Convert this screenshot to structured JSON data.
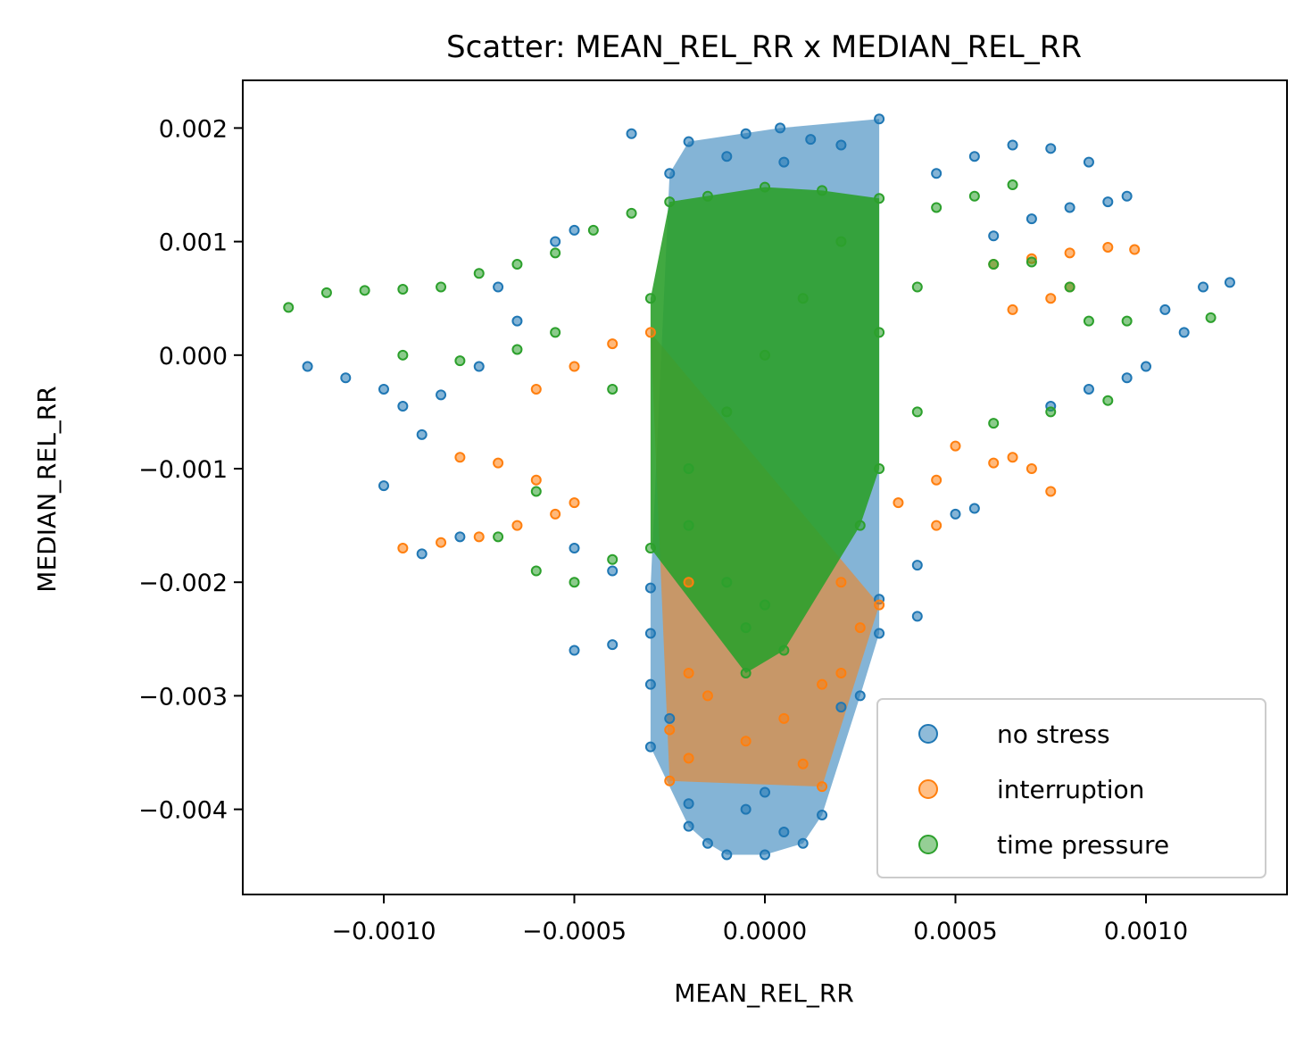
{
  "chart_data": {
    "type": "scatter",
    "title": "Scatter: MEAN_REL_RR x MEDIAN_REL_RR",
    "xlabel": "MEAN_REL_RR",
    "ylabel": "MEDIAN_REL_RR",
    "xlim": [
      -0.00137,
      0.00137
    ],
    "ylim": [
      -0.00475,
      0.00242
    ],
    "xticks": [
      -0.001,
      -0.0005,
      0.0,
      0.0005,
      0.001
    ],
    "xtick_labels": [
      "−0.0010",
      "−0.0005",
      "0.0000",
      "0.0005",
      "0.0010"
    ],
    "yticks": [
      0.002,
      0.001,
      0.0,
      -0.001,
      -0.002,
      -0.003,
      -0.004
    ],
    "ytick_labels": [
      "0.002",
      "0.001",
      "0.000",
      "−0.001",
      "−0.002",
      "−0.003",
      "−0.004"
    ],
    "grid": false,
    "legend_position": "lower-right",
    "series": [
      {
        "name": "no stress",
        "color": "#1f77b4",
        "points": [
          [
            -5e-05,
            0.00195
          ],
          [
            4e-05,
            0.002
          ],
          [
            0.00012,
            0.0019
          ],
          [
            0.0002,
            0.00185
          ],
          [
            0.0003,
            0.00208
          ],
          [
            -0.00035,
            0.00195
          ],
          [
            -0.0002,
            0.00188
          ],
          [
            -0.0001,
            0.00175
          ],
          [
            5e-05,
            0.0017
          ],
          [
            -0.00025,
            0.0016
          ],
          [
            0.00045,
            0.0016
          ],
          [
            0.00055,
            0.00175
          ],
          [
            0.00065,
            0.00185
          ],
          [
            0.00075,
            0.00182
          ],
          [
            0.00085,
            0.0017
          ],
          [
            0.0009,
            0.00135
          ],
          [
            0.0008,
            0.0013
          ],
          [
            0.0007,
            0.0012
          ],
          [
            0.0006,
            0.00105
          ],
          [
            0.00095,
            0.0014
          ],
          [
            0.00105,
            0.0004
          ],
          [
            0.00115,
            0.0006
          ],
          [
            0.00122,
            0.00064
          ],
          [
            0.0011,
            0.0002
          ],
          [
            0.001,
            -0.0001
          ],
          [
            0.00085,
            -0.0003
          ],
          [
            0.00075,
            -0.00045
          ],
          [
            0.00095,
            -0.0002
          ],
          [
            -0.0012,
            -0.0001
          ],
          [
            -0.0011,
            -0.0002
          ],
          [
            -0.001,
            -0.0003
          ],
          [
            -0.00095,
            -0.00045
          ],
          [
            -0.00085,
            -0.00035
          ],
          [
            -0.00075,
            -0.0001
          ],
          [
            -0.00065,
            0.0003
          ],
          [
            -0.0007,
            0.0006
          ],
          [
            -0.00055,
            0.001
          ],
          [
            -0.0005,
            0.0011
          ],
          [
            -0.0009,
            -0.0007
          ],
          [
            -0.001,
            -0.00115
          ],
          [
            -0.0008,
            -0.0016
          ],
          [
            -0.0009,
            -0.00175
          ],
          [
            -0.0005,
            -0.0017
          ],
          [
            -0.0004,
            -0.0019
          ],
          [
            -0.0003,
            -0.00205
          ],
          [
            0.0003,
            -0.00215
          ],
          [
            0.0004,
            -0.00185
          ],
          [
            0.0005,
            -0.0014
          ],
          [
            0.00055,
            -0.00135
          ],
          [
            0.0004,
            -0.0023
          ],
          [
            0.0003,
            -0.00245
          ],
          [
            -0.0005,
            -0.0026
          ],
          [
            -0.0004,
            -0.00255
          ],
          [
            -0.0003,
            -0.00245
          ],
          [
            -0.0003,
            -0.0029
          ],
          [
            -0.00025,
            -0.0032
          ],
          [
            -0.0003,
            -0.00345
          ],
          [
            0.0002,
            -0.0031
          ],
          [
            0.00025,
            -0.003
          ],
          [
            -0.0002,
            -0.00395
          ],
          [
            -0.0002,
            -0.00415
          ],
          [
            -0.00015,
            -0.0043
          ],
          [
            -0.0001,
            -0.0044
          ],
          [
            0.0,
            -0.0044
          ],
          [
            5e-05,
            -0.0042
          ],
          [
            0.0001,
            -0.0043
          ],
          [
            0.00015,
            -0.00405
          ],
          [
            -5e-05,
            -0.004
          ],
          [
            0.0,
            -0.00385
          ]
        ]
      },
      {
        "name": "interruption",
        "color": "#ff7f0e",
        "points": [
          [
            0.0006,
            0.0008
          ],
          [
            0.0007,
            0.00085
          ],
          [
            0.0008,
            0.0009
          ],
          [
            0.0009,
            0.00095
          ],
          [
            0.00097,
            0.00093
          ],
          [
            0.0008,
            0.0006
          ],
          [
            0.00075,
            0.0005
          ],
          [
            0.00065,
            0.0004
          ],
          [
            0.0005,
            -0.0008
          ],
          [
            0.0006,
            -0.00095
          ],
          [
            0.0007,
            -0.001
          ],
          [
            0.00075,
            -0.0012
          ],
          [
            0.00065,
            -0.0009
          ],
          [
            0.00045,
            -0.0011
          ],
          [
            0.00035,
            -0.0013
          ],
          [
            0.00045,
            -0.0015
          ],
          [
            -0.00095,
            -0.0017
          ],
          [
            -0.00085,
            -0.00165
          ],
          [
            -0.00075,
            -0.0016
          ],
          [
            -0.00065,
            -0.0015
          ],
          [
            -0.00055,
            -0.0014
          ],
          [
            -0.0008,
            -0.0009
          ],
          [
            -0.0007,
            -0.00095
          ],
          [
            -0.0006,
            -0.0011
          ],
          [
            -0.0005,
            -0.0013
          ],
          [
            -0.0006,
            -0.0003
          ],
          [
            -0.0005,
            -0.0001
          ],
          [
            -0.0004,
            0.0001
          ],
          [
            -0.0003,
            0.0002
          ],
          [
            -0.0002,
            -0.002
          ],
          [
            0.0002,
            -0.002
          ],
          [
            0.0003,
            -0.0022
          ],
          [
            0.00025,
            -0.0024
          ],
          [
            -0.0002,
            -0.0028
          ],
          [
            -0.00015,
            -0.003
          ],
          [
            0.00015,
            -0.0029
          ],
          [
            0.0002,
            -0.0028
          ],
          [
            -0.00025,
            -0.0033
          ],
          [
            -0.0002,
            -0.00355
          ],
          [
            -0.00025,
            -0.00375
          ],
          [
            0.0001,
            -0.0036
          ],
          [
            0.00015,
            -0.0038
          ],
          [
            -5e-05,
            -0.0034
          ],
          [
            5e-05,
            -0.0032
          ]
        ]
      },
      {
        "name": "time pressure",
        "color": "#2ca02c",
        "points": [
          [
            -0.00125,
            0.00042
          ],
          [
            -0.00115,
            0.00055
          ],
          [
            -0.00105,
            0.00057
          ],
          [
            -0.00095,
            0.00058
          ],
          [
            -0.00085,
            0.0006
          ],
          [
            -0.00075,
            0.00072
          ],
          [
            -0.00065,
            0.0008
          ],
          [
            -0.00055,
            0.0009
          ],
          [
            -0.00045,
            0.0011
          ],
          [
            -0.00035,
            0.00125
          ],
          [
            -0.00025,
            0.00135
          ],
          [
            -0.00015,
            0.0014
          ],
          [
            0.0,
            0.00148
          ],
          [
            0.00015,
            0.00145
          ],
          [
            0.0003,
            0.00138
          ],
          [
            0.00045,
            0.0013
          ],
          [
            0.00055,
            0.0014
          ],
          [
            0.00065,
            0.0015
          ],
          [
            0.0006,
            0.0008
          ],
          [
            0.0007,
            0.00082
          ],
          [
            0.0008,
            0.0006
          ],
          [
            0.00085,
            0.0003
          ],
          [
            0.00095,
            0.0003
          ],
          [
            0.00117,
            0.00033
          ],
          [
            0.0009,
            -0.0004
          ],
          [
            0.00075,
            -0.0005
          ],
          [
            0.0006,
            -0.0006
          ],
          [
            0.0004,
            -0.0005
          ],
          [
            0.0003,
            -0.001
          ],
          [
            0.00025,
            -0.0015
          ],
          [
            -0.00095,
            0.0
          ],
          [
            -0.0008,
            -5e-05
          ],
          [
            -0.00065,
            5e-05
          ],
          [
            -0.00055,
            0.0002
          ],
          [
            -0.0006,
            -0.0012
          ],
          [
            -0.0007,
            -0.0016
          ],
          [
            -0.0006,
            -0.0019
          ],
          [
            -0.0005,
            -0.002
          ],
          [
            -0.0004,
            -0.0018
          ],
          [
            -0.0003,
            -0.0017
          ],
          [
            -0.0002,
            -0.0015
          ],
          [
            -0.0002,
            -0.001
          ],
          [
            -0.0001,
            -0.0005
          ],
          [
            0.0,
            0.0
          ],
          [
            0.0001,
            0.0005
          ],
          [
            0.0002,
            0.001
          ],
          [
            -0.0003,
            0.0005
          ],
          [
            -0.0004,
            -0.0003
          ],
          [
            0.0003,
            0.0002
          ],
          [
            0.0004,
            0.0006
          ],
          [
            -0.0001,
            -0.002
          ],
          [
            0.0,
            -0.0022
          ],
          [
            -5e-05,
            -0.0024
          ],
          [
            5e-05,
            -0.0026
          ],
          [
            -5e-05,
            -0.0028
          ]
        ]
      }
    ]
  }
}
